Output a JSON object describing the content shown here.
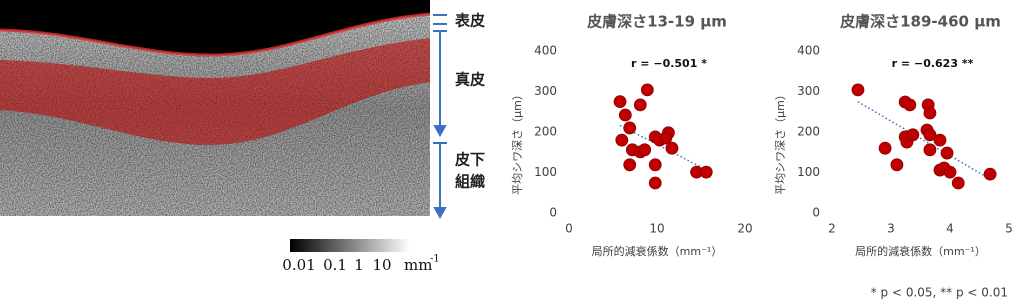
{
  "chart_data": [
    {
      "type": "scatter",
      "title": "皮膚深さ13-19 μm",
      "x_label": "局所的減衰係数（mm⁻¹）",
      "y_label": "平均シワ深さ（μm）",
      "annotation": "r = −0.501 *",
      "color": "#c00000",
      "x": [
        5.8,
        6.4,
        8.1,
        8.9,
        6.0,
        6.9,
        7.2,
        8.1,
        8.6,
        6.9,
        9.8,
        10.3,
        11.3,
        11.0,
        11.7,
        9.8,
        9.8,
        14.5,
        15.6
      ],
      "values": [
        275,
        242,
        267,
        304,
        180,
        210,
        156,
        151,
        156,
        119,
        188,
        180,
        198,
        185,
        160,
        119,
        74,
        101,
        101
      ],
      "xlim": [
        0,
        20
      ],
      "xticks": [
        0,
        10,
        20
      ],
      "ylim": [
        0,
        400
      ],
      "yticks": [
        0,
        100,
        200,
        300,
        400
      ]
    },
    {
      "type": "scatter",
      "title": "皮膚深さ189-460 μm",
      "x_label": "局所的減衰係数（mm⁻¹）",
      "y_label": "平均シワ深さ（μm）",
      "annotation": "r = −0.623 **",
      "color": "#c00000",
      "x": [
        2.44,
        2.9,
        3.1,
        3.24,
        3.32,
        3.24,
        3.27,
        3.37,
        3.63,
        3.66,
        3.61,
        3.66,
        3.66,
        3.83,
        3.95,
        3.83,
        3.9,
        4.0,
        4.14,
        4.68
      ],
      "values": [
        304,
        160,
        119,
        274,
        267,
        188,
        175,
        193,
        267,
        247,
        205,
        193,
        156,
        180,
        148,
        106,
        111,
        101,
        74,
        96
      ],
      "xlim": [
        2,
        5
      ],
      "xticks": [
        2,
        3,
        4,
        5
      ],
      "ylim": [
        0,
        400
      ],
      "yticks": [
        0,
        100,
        200,
        300,
        400
      ]
    }
  ],
  "image": {
    "layers": [
      "表皮",
      "真皮",
      "皮下",
      "組織"
    ],
    "colorbar_ticks": [
      "0.01",
      "0.1",
      "1",
      "10"
    ],
    "colorbar_unit": "mm",
    "colorbar_unit_exp": "-1"
  },
  "footnote": "* p < 0.05, ** p < 0.01"
}
